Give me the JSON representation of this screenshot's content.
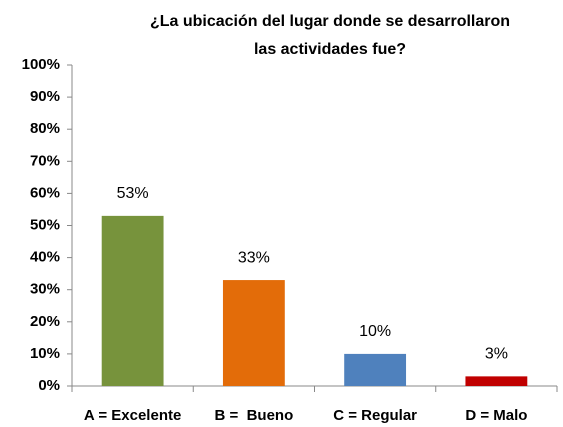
{
  "chart_data": {
    "type": "bar",
    "title": [
      "¿La ubicación del lugar donde se desarrollaron",
      "las actividades fue?"
    ],
    "categories": [
      "A = Excelente",
      "B =  Bueno",
      "C = Regular",
      "D = Malo"
    ],
    "values": [
      53,
      33,
      10,
      3
    ],
    "value_labels": [
      "53%",
      "33%",
      "10%",
      "3%"
    ],
    "colors": [
      "#77933c",
      "#e36c09",
      "#4f81bd",
      "#c00000"
    ],
    "ylim": [
      0,
      100
    ],
    "yticks": [
      {
        "value": 0,
        "label": "0%"
      },
      {
        "value": 10,
        "label": "10%"
      },
      {
        "value": 20,
        "label": "20%"
      },
      {
        "value": 30,
        "label": "30%"
      },
      {
        "value": 40,
        "label": "40%"
      },
      {
        "value": 50,
        "label": "50%"
      },
      {
        "value": 60,
        "label": "60%"
      },
      {
        "value": 70,
        "label": "70%"
      },
      {
        "value": 80,
        "label": "80%"
      },
      {
        "value": 90,
        "label": "90%"
      },
      {
        "value": 100,
        "label": "100%"
      }
    ],
    "grid": false
  }
}
